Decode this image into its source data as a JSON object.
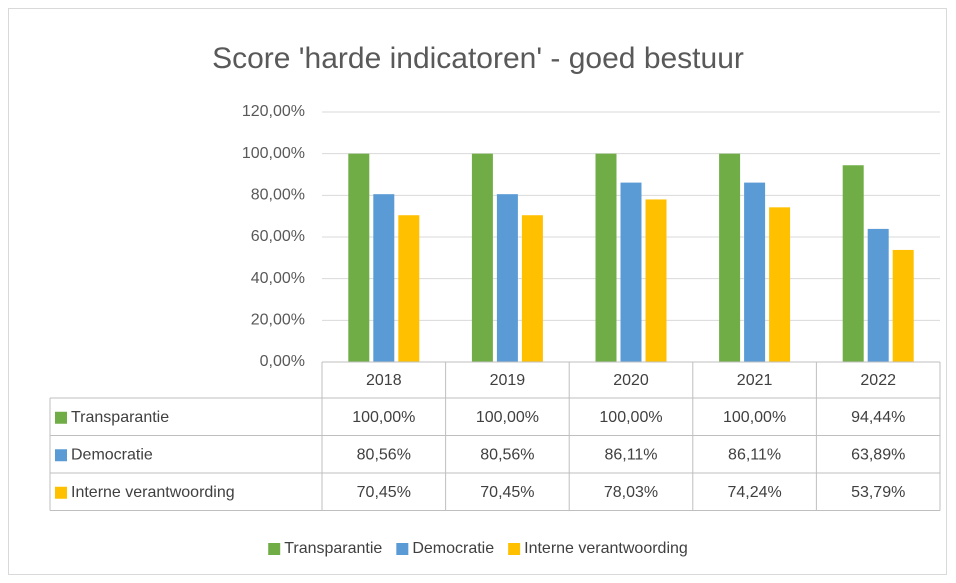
{
  "chart_data": {
    "type": "bar",
    "title": "Score 'harde indicatoren' - goed bestuur",
    "categories": [
      "2018",
      "2019",
      "2020",
      "2021",
      "2022"
    ],
    "series": [
      {
        "name": "Transparantie",
        "color": "#70ad47",
        "values": [
          100,
          100,
          100,
          100,
          94.44
        ],
        "value_labels": [
          "100,00%",
          "100,00%",
          "100,00%",
          "100,00%",
          "94,44%"
        ]
      },
      {
        "name": "Democratie",
        "color": "#5b9bd5",
        "values": [
          80.56,
          80.56,
          86.11,
          86.11,
          63.89
        ],
        "value_labels": [
          "80,56%",
          "80,56%",
          "86,11%",
          "86,11%",
          "63,89%"
        ]
      },
      {
        "name": "Interne verantwoording",
        "color": "#ffc000",
        "values": [
          70.45,
          70.45,
          78.03,
          74.24,
          53.79
        ],
        "value_labels": [
          "70,45%",
          "70,45%",
          "78,03%",
          "74,24%",
          "53,79%"
        ]
      }
    ],
    "ylim": [
      0,
      120
    ],
    "yticks": [
      {
        "value": 0,
        "label": "0,00%"
      },
      {
        "value": 20,
        "label": "20,00%"
      },
      {
        "value": 40,
        "label": "40,00%"
      },
      {
        "value": 60,
        "label": "60,00%"
      },
      {
        "value": 80,
        "label": "80,00%"
      },
      {
        "value": 100,
        "label": "100,00%"
      },
      {
        "value": 120,
        "label": "120,00%"
      }
    ],
    "grid": true,
    "legend": "bottom"
  }
}
